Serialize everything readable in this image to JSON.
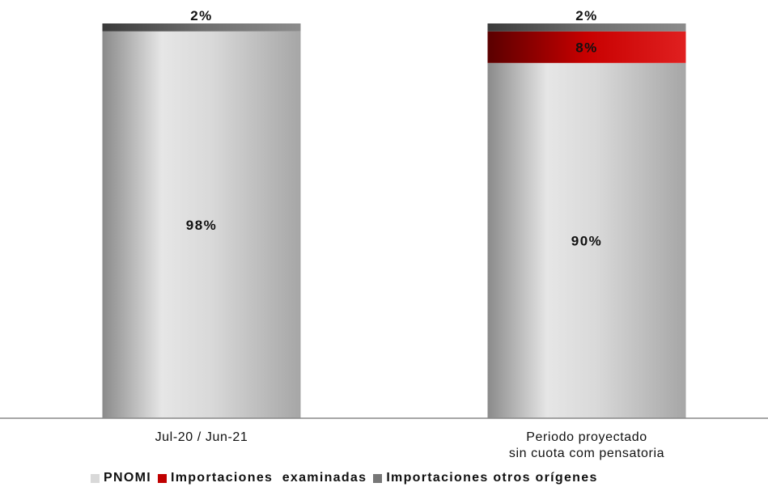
{
  "chart_data": {
    "type": "bar",
    "stacked": true,
    "orientation": "vertical",
    "categories": [
      "Jul-20 / Jun-21",
      "Periodo proyectado sin cuota compensatoria"
    ],
    "category_label_lines": [
      [
        "Jul-20 / Jun-21"
      ],
      [
        "Periodo proyectado",
        "sin cuota com pensatoria"
      ]
    ],
    "ylim": [
      0,
      100
    ],
    "grid": false,
    "legend_position": "bottom",
    "series": [
      {
        "name": "PNOMI",
        "values": [
          98,
          90
        ],
        "labels": [
          "98%",
          "90%"
        ],
        "color": "#d4d4d4"
      },
      {
        "name": "Importaciones  examinadas",
        "values": [
          0,
          8
        ],
        "labels": [
          "",
          "8%"
        ],
        "color": "#c00000"
      },
      {
        "name": "Importaciones otros orígenes",
        "values": [
          2,
          2
        ],
        "labels": [
          "2%",
          "2%"
        ],
        "color": "#6b6b6b"
      }
    ]
  }
}
